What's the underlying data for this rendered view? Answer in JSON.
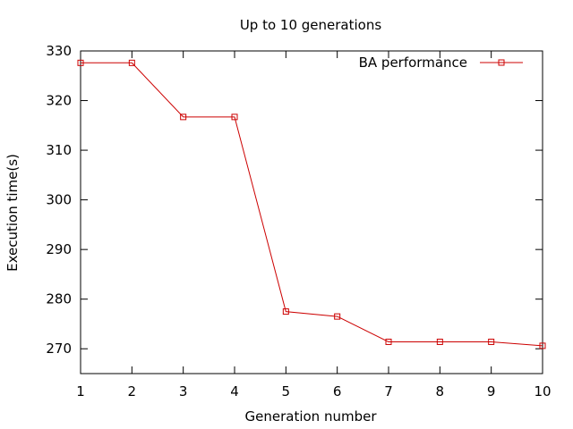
{
  "chart_data": {
    "type": "line",
    "title": "Up to 10 generations",
    "xlabel": "Generation number",
    "ylabel": "Execution time(s)",
    "xlim": [
      1,
      10
    ],
    "ylim": [
      265,
      330
    ],
    "x_ticks": [
      1,
      2,
      3,
      4,
      5,
      6,
      7,
      8,
      9,
      10
    ],
    "y_ticks": [
      270,
      280,
      290,
      300,
      310,
      320,
      330
    ],
    "grid": false,
    "legend_position": "top-right",
    "series": [
      {
        "name": "BA performance",
        "color": "#cc0000",
        "marker": "square",
        "x": [
          1,
          2,
          3,
          4,
          5,
          6,
          7,
          8,
          9,
          10
        ],
        "y": [
          327.6,
          327.6,
          316.7,
          316.7,
          277.5,
          276.5,
          271.4,
          271.4,
          271.4,
          270.6
        ]
      }
    ]
  }
}
